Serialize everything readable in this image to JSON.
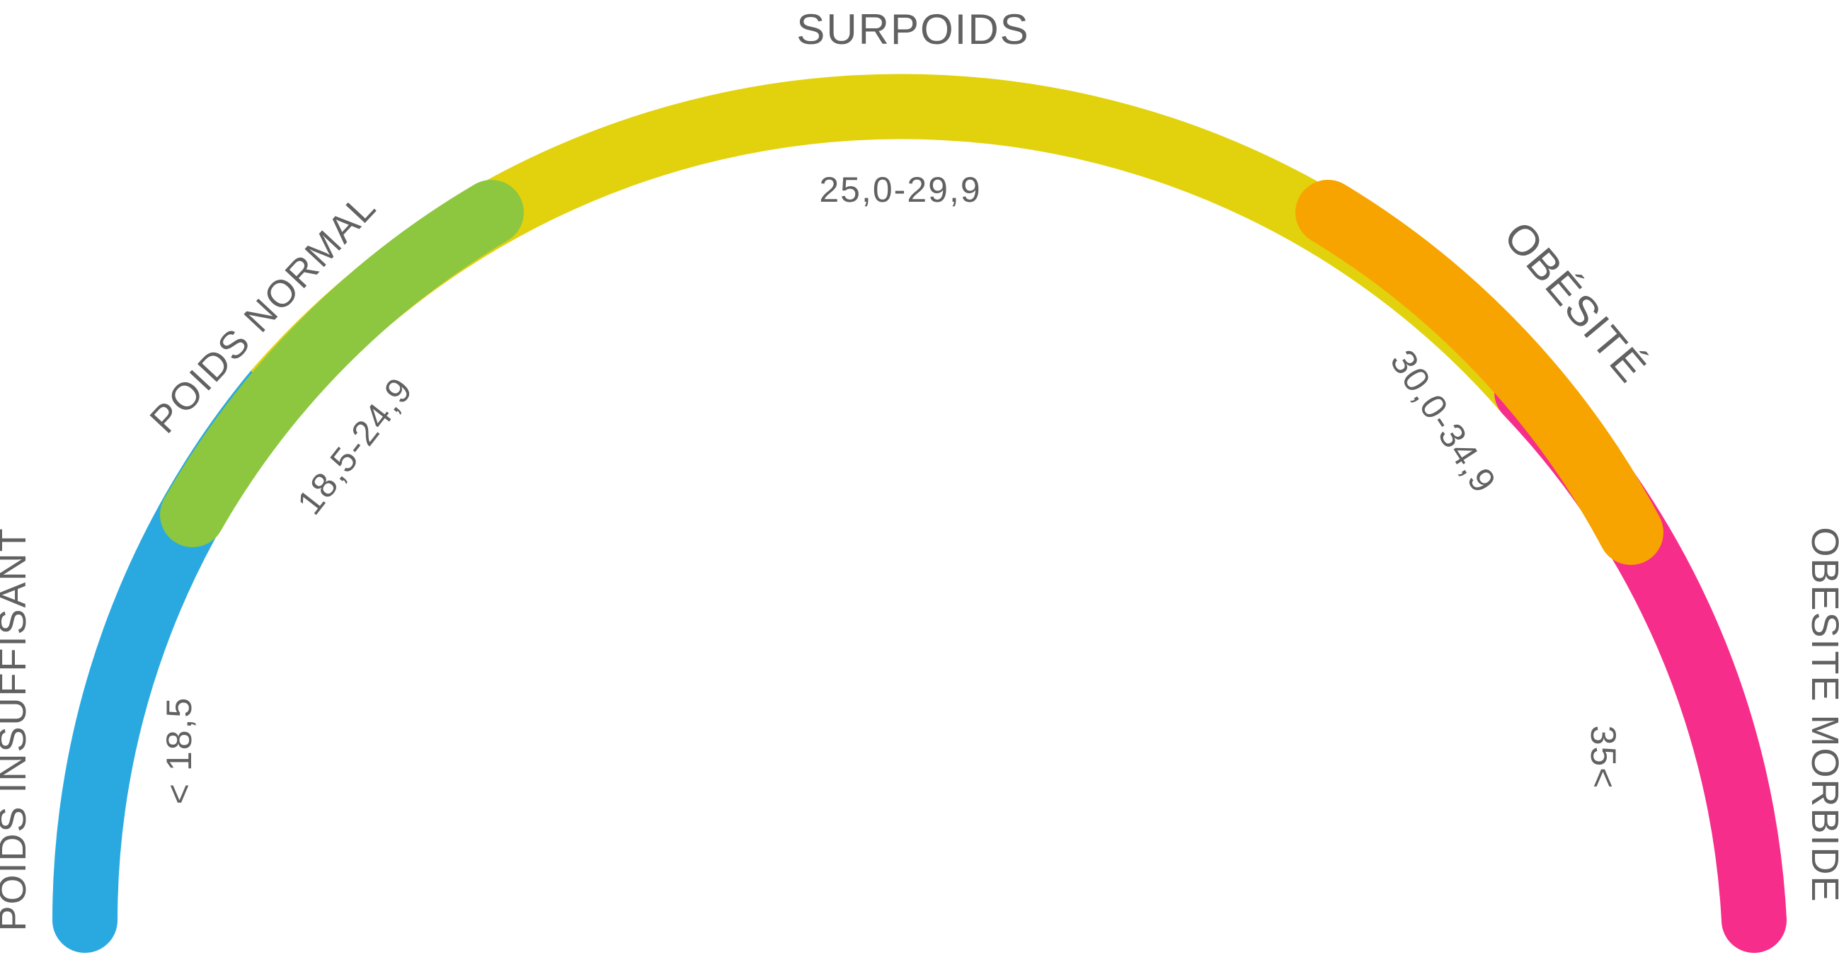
{
  "diagram": {
    "segments": [
      {
        "id": "insuffisant",
        "name": "POIDS INSUFFISANT",
        "range": "< 18,5",
        "color": "#29a9e0"
      },
      {
        "id": "normal",
        "name": "POIDS NORMAL",
        "range": "18,5-24,9",
        "color": "#8dc63f"
      },
      {
        "id": "surpoids",
        "name": "SURPOIDS",
        "range": "25,0-29,9",
        "color": "#e2d20e"
      },
      {
        "id": "obesite",
        "name": "OBÉSITÉ",
        "range": "30,0-34,9",
        "color": "#f7a400"
      },
      {
        "id": "morbide",
        "name": "OBÉSITÉ MORBIDE",
        "range": "35<",
        "color": "#f72d8b"
      }
    ],
    "text_color": "#616161"
  }
}
